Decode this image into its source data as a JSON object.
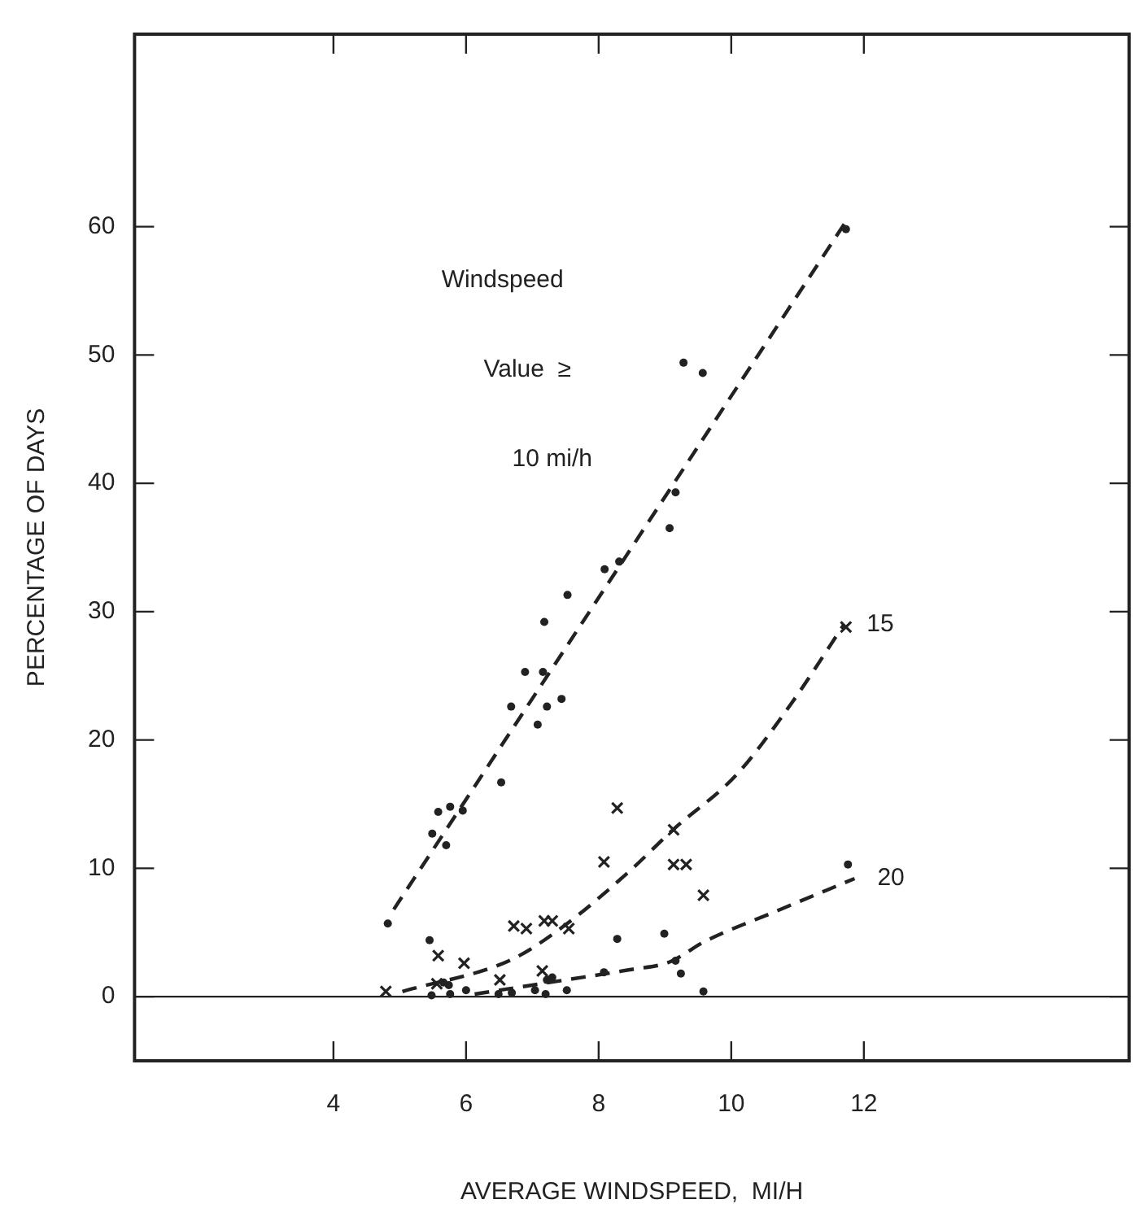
{
  "chart_data": {
    "type": "scatter",
    "xlabel": "AVERAGE WINDSPEED,  MI/H",
    "ylabel": "PERCENTAGE OF DAYS",
    "xlim": [
      1,
      16
    ],
    "xticks": [
      4,
      6,
      8,
      10,
      12
    ],
    "ylim": [
      -5,
      75
    ],
    "yticks": [
      0,
      10,
      20,
      30,
      40,
      50,
      60
    ],
    "grid": false,
    "legend": false,
    "ref_lines": [
      {
        "axis": "y",
        "value": 0,
        "color": "#222222"
      }
    ],
    "annotations": [
      "Windspeed",
      "Value  ≥",
      "10 mi/h"
    ],
    "series": [
      {
        "marker": "circle",
        "color": "#222222",
        "x": [
          4.82,
          5.49,
          5.58,
          5.7,
          5.76,
          5.95,
          6.53,
          6.68,
          6.89,
          7.08,
          7.16,
          7.22,
          7.44,
          7.18,
          7.53,
          8.09,
          8.31,
          9.07,
          9.16,
          9.28,
          9.57,
          11.73
        ],
        "values": [
          5.7,
          12.7,
          14.4,
          11.8,
          14.8,
          14.5,
          16.7,
          22.6,
          25.3,
          21.2,
          25.3,
          22.6,
          23.2,
          29.2,
          31.3,
          33.3,
          33.9,
          36.5,
          39.3,
          49.4,
          48.6,
          59.8
        ]
      },
      {
        "marker": "cross",
        "color": "#222222",
        "x": [
          4.79,
          5.56,
          5.58,
          5.97,
          6.51,
          6.72,
          6.91,
          7.15,
          7.18,
          7.3,
          7.55,
          8.08,
          8.28,
          9.13,
          9.13,
          9.32,
          9.58,
          11.73
        ],
        "values": [
          0.4,
          1.0,
          3.2,
          2.6,
          1.3,
          5.5,
          5.3,
          2.0,
          5.9,
          5.9,
          5.3,
          10.5,
          14.7,
          13.0,
          10.3,
          10.3,
          7.9,
          28.8
        ]
      },
      {
        "marker": "circle",
        "color": "#222222",
        "x": [
          5.45,
          5.48,
          5.66,
          5.74,
          5.76,
          6.0,
          6.49,
          6.69,
          7.04,
          7.2,
          7.22,
          7.3,
          7.52,
          8.08,
          8.28,
          8.99,
          9.16,
          9.24,
          9.58,
          11.76
        ],
        "values": [
          4.4,
          0.1,
          1.1,
          0.9,
          0.2,
          0.5,
          0.2,
          0.3,
          0.5,
          0.2,
          1.3,
          1.5,
          0.5,
          1.9,
          4.5,
          4.9,
          2.8,
          1.8,
          0.4,
          10.3
        ]
      },
      {
        "type": "line",
        "marker": "none",
        "line_style": "dashed",
        "color": "#222222",
        "x": [
          4.91,
          11.73
        ],
        "values": [
          6.8,
          60.4
        ]
      },
      {
        "type": "line",
        "name": "15",
        "marker": "none",
        "line_style": "dashed",
        "color": "#222222",
        "x": [
          5.04,
          6.69,
          7.5,
          8.47,
          9.12,
          10.08,
          10.9,
          11.7
        ],
        "values": [
          0.4,
          2.9,
          5.6,
          9.8,
          13.0,
          17.3,
          22.8,
          29
        ]
      },
      {
        "type": "line",
        "name": "20",
        "marker": "none",
        "line_style": "dashed",
        "color": "#222222",
        "x": [
          6.13,
          7.5,
          8.47,
          9.07,
          9.6,
          10.65,
          11.86
        ],
        "values": [
          0.2,
          1.3,
          2.1,
          2.7,
          4.3,
          6.6,
          9.2
        ]
      }
    ]
  }
}
